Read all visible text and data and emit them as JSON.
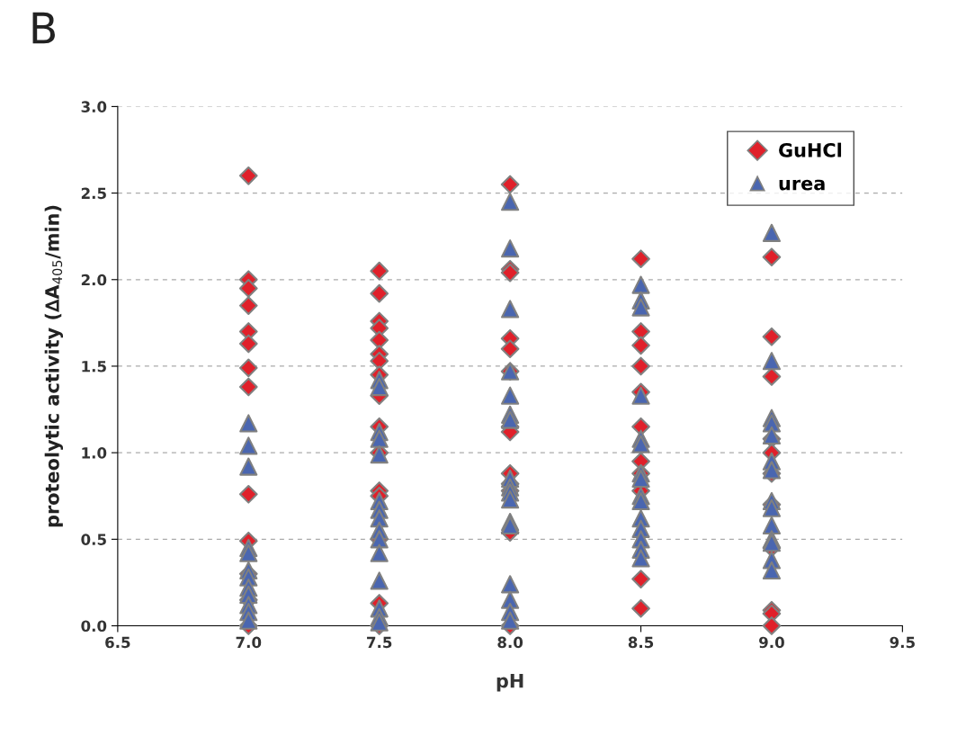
{
  "chart_data": {
    "type": "scatter",
    "title": "B",
    "xlabel": "pH",
    "ylabel": "proteolytic activity (∆A$_{405}$/min)",
    "xlim": [
      6.5,
      9.5
    ],
    "xticks": [
      {
        "value": 6.5,
        "label": "6.5"
      },
      {
        "value": 7.0,
        "label": "7.0"
      },
      {
        "value": 7.5,
        "label": "7.5"
      },
      {
        "value": 8.0,
        "label": "8.0"
      },
      {
        "value": 8.5,
        "label": "8.5"
      },
      {
        "value": 9.0,
        "label": "9.0"
      },
      {
        "value": 9.5,
        "label": "9.5"
      }
    ],
    "ylim": [
      0,
      3
    ],
    "yticks": [
      {
        "value": 0,
        "label": "0.0"
      },
      {
        "value": 0.5,
        "label": "0.5"
      },
      {
        "value": 1.0,
        "label": "1.0"
      },
      {
        "value": 1.5,
        "label": "1.5"
      },
      {
        "value": 2.0,
        "label": "2.0"
      },
      {
        "value": 2.5,
        "label": "2.5"
      },
      {
        "value": 3.0,
        "label": "3.0"
      }
    ],
    "grid": "y",
    "legend": "top right",
    "series": [
      {
        "name": "GuHCl",
        "color": "#e0202a",
        "marker": "diamond",
        "x": [
          7.0,
          7.0,
          7.0,
          7.0,
          7.0,
          7.0,
          7.0,
          7.0,
          7.0,
          7.0,
          7.0,
          7.0,
          7.0,
          7.5,
          7.5,
          7.5,
          7.5,
          7.5,
          7.5,
          7.5,
          7.5,
          7.5,
          7.5,
          7.5,
          7.5,
          7.5,
          7.5,
          7.5,
          7.5,
          8.0,
          8.0,
          8.0,
          8.0,
          8.0,
          8.0,
          8.0,
          8.0,
          8.0,
          8.0,
          8.0,
          8.0,
          8.0,
          8.5,
          8.5,
          8.5,
          8.5,
          8.5,
          8.5,
          8.5,
          8.5,
          8.5,
          8.5,
          8.5,
          9.0,
          9.0,
          9.0,
          9.0,
          9.0,
          9.0,
          9.0,
          9.0,
          9.0,
          9.0,
          9.0
        ],
        "values": [
          2.6,
          2.0,
          1.95,
          1.85,
          1.7,
          1.63,
          1.49,
          1.38,
          0.76,
          0.49,
          0.3,
          0.15,
          0.0,
          2.05,
          1.92,
          1.76,
          1.72,
          1.65,
          1.57,
          1.53,
          1.45,
          1.33,
          1.15,
          1.0,
          0.78,
          0.75,
          0.5,
          0.13,
          0.0,
          2.55,
          2.06,
          2.04,
          1.66,
          1.6,
          1.47,
          1.15,
          1.12,
          0.88,
          0.82,
          0.78,
          0.54,
          0.0,
          2.12,
          1.7,
          1.62,
          1.5,
          1.35,
          1.15,
          0.95,
          0.88,
          0.78,
          0.27,
          0.1,
          2.13,
          1.67,
          1.44,
          1.08,
          1.0,
          0.88,
          0.7,
          0.45,
          0.09,
          0.07,
          0.0
        ]
      },
      {
        "name": "urea",
        "color": "#4a66b0",
        "marker": "triangle",
        "x": [
          7.0,
          7.0,
          7.0,
          7.0,
          7.0,
          7.0,
          7.0,
          7.0,
          7.0,
          7.0,
          7.0,
          7.0,
          7.5,
          7.5,
          7.5,
          7.5,
          7.5,
          7.5,
          7.5,
          7.5,
          7.5,
          7.5,
          7.5,
          7.5,
          7.5,
          7.5,
          7.5,
          8.0,
          8.0,
          8.0,
          8.0,
          8.0,
          8.0,
          8.0,
          8.0,
          8.0,
          8.0,
          8.0,
          8.0,
          8.0,
          8.0,
          8.0,
          8.0,
          8.0,
          8.5,
          8.5,
          8.5,
          8.5,
          8.5,
          8.5,
          8.5,
          8.5,
          8.5,
          8.5,
          8.5,
          8.5,
          8.5,
          8.5,
          8.5,
          9.0,
          9.0,
          9.0,
          9.0,
          9.0,
          9.0,
          9.0,
          9.0,
          9.0,
          9.0,
          9.0,
          9.0,
          9.0,
          9.0
        ],
        "values": [
          1.17,
          1.04,
          0.92,
          0.45,
          0.42,
          0.32,
          0.28,
          0.22,
          0.18,
          0.12,
          0.08,
          0.03,
          1.42,
          1.38,
          1.12,
          1.08,
          0.99,
          0.72,
          0.67,
          0.62,
          0.55,
          0.5,
          0.42,
          0.26,
          0.1,
          0.05,
          0.02,
          2.45,
          2.18,
          1.83,
          1.47,
          1.33,
          1.22,
          1.19,
          0.85,
          0.8,
          0.77,
          0.73,
          0.6,
          0.58,
          0.24,
          0.15,
          0.08,
          0.03,
          1.97,
          1.88,
          1.84,
          1.33,
          1.08,
          1.05,
          0.88,
          0.85,
          0.75,
          0.72,
          0.62,
          0.56,
          0.5,
          0.44,
          0.39,
          2.27,
          1.53,
          1.2,
          1.17,
          1.1,
          0.95,
          0.9,
          0.72,
          0.68,
          0.58,
          0.5,
          0.48,
          0.38,
          0.32
        ]
      }
    ]
  }
}
